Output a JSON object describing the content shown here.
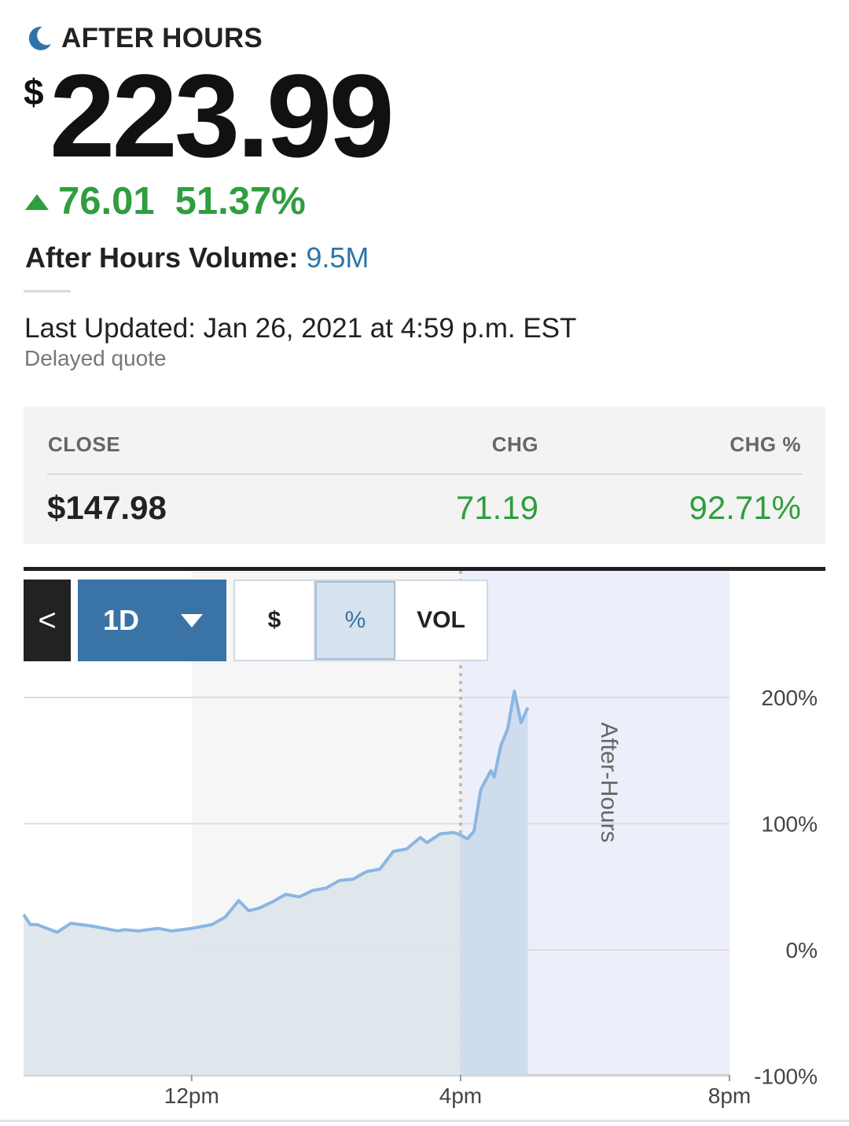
{
  "status": {
    "label": "AFTER HOURS",
    "icon": "moon-icon"
  },
  "price": {
    "currency": "$",
    "value": "223.99"
  },
  "change": {
    "direction_icon": "up-triangle-icon",
    "amount": "76.01",
    "percent": "51.37%"
  },
  "volume": {
    "label": "After Hours Volume:",
    "value": "9.5M"
  },
  "updated": {
    "text": "Last Updated: Jan 26, 2021 at 4:59 p.m. EST",
    "note": "Delayed quote"
  },
  "close_panel": {
    "headers": [
      "CLOSE",
      "CHG",
      "CHG %"
    ],
    "values": [
      "$147.98",
      "71.19",
      "92.71%"
    ]
  },
  "chart_controls": {
    "back_label": "<",
    "range_label": "1D",
    "toggles": [
      "$",
      "%",
      "VOL"
    ],
    "selected_toggle": "%"
  },
  "colors": {
    "up": "#2e9e3e",
    "accent": "#3a74a6",
    "line": "#8ab6e2"
  },
  "chart_data": {
    "type": "area",
    "x_ticks": [
      "12pm",
      "4pm",
      "8pm"
    ],
    "y_ticks": [
      "200%",
      "100%",
      "0%",
      "-100%"
    ],
    "ylim": [
      -100,
      200
    ],
    "xlim_hours": [
      9.5,
      20
    ],
    "after_hours_label": "After-Hours",
    "after_hours_start_hour": 16,
    "grid": true,
    "x_hours": [
      9.5,
      9.6,
      9.7,
      9.8,
      9.9,
      10.0,
      10.2,
      10.5,
      10.7,
      10.9,
      11.0,
      11.2,
      11.5,
      11.7,
      12.0,
      12.3,
      12.5,
      12.7,
      12.85,
      13.0,
      13.2,
      13.4,
      13.6,
      13.8,
      14.0,
      14.2,
      14.4,
      14.6,
      14.8,
      15.0,
      15.2,
      15.4,
      15.5,
      15.7,
      15.9,
      16.0,
      16.1,
      16.2,
      16.3,
      16.45,
      16.5,
      16.6,
      16.7,
      16.8,
      16.9,
      17.0
    ],
    "y_percent": [
      28,
      20,
      20,
      18,
      16,
      14,
      21,
      19,
      17,
      15,
      16,
      15,
      17,
      15,
      17,
      20,
      26,
      39,
      31,
      33,
      38,
      44,
      42,
      47,
      49,
      55,
      56,
      62,
      64,
      78,
      80,
      89,
      85,
      92,
      93,
      91,
      88,
      94,
      127,
      142,
      137,
      162,
      175,
      205,
      180,
      192
    ]
  }
}
